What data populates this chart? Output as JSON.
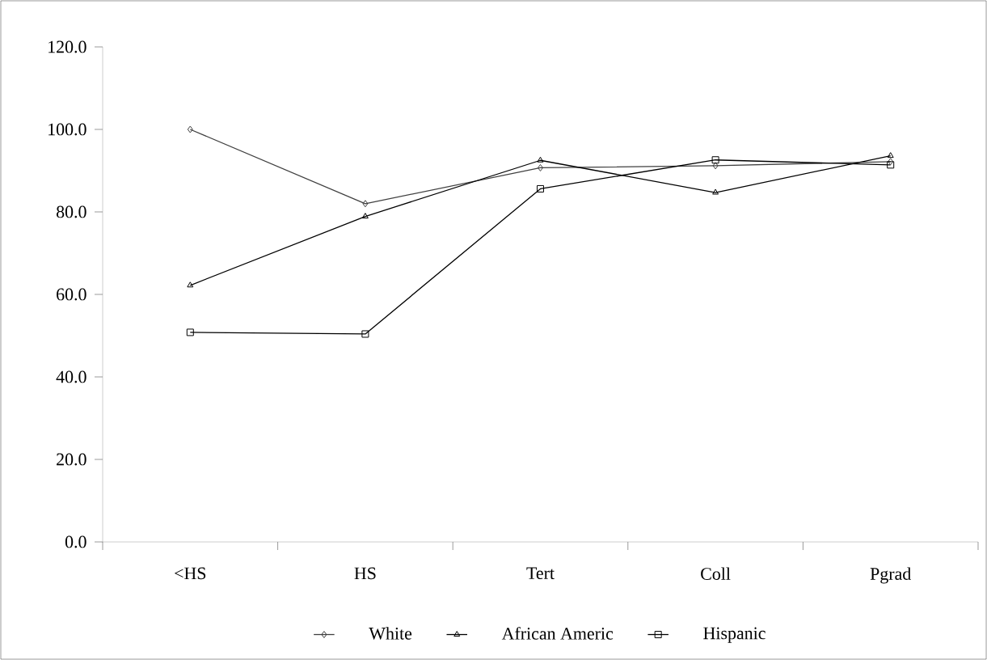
{
  "chart_data": {
    "type": "line",
    "categories": [
      "<HS",
      "HS",
      "Tert",
      "Coll",
      "Pgrad"
    ],
    "series": [
      {
        "name": "White",
        "color": "#404040",
        "marker": "diamond",
        "values": [
          100.0,
          82.0,
          90.7,
          91.2,
          92.2
        ]
      },
      {
        "name": "African Americ",
        "color": "#000000",
        "marker": "triangle",
        "values": [
          62.2,
          78.9,
          92.5,
          84.7,
          93.6
        ]
      },
      {
        "name": "Hispanic",
        "color": "#000000",
        "marker": "square",
        "values": [
          50.8,
          50.4,
          85.6,
          92.6,
          91.4
        ]
      }
    ],
    "ylim": [
      0,
      120
    ],
    "yticks": [
      {
        "value": 0,
        "label": "0.0"
      },
      {
        "value": 20,
        "label": "20.0"
      },
      {
        "value": 40,
        "label": "40.0"
      },
      {
        "value": 60,
        "label": "60.0"
      },
      {
        "value": 80,
        "label": "80.0"
      },
      {
        "value": 100,
        "label": "100.0"
      },
      {
        "value": 120,
        "label": "120.0"
      }
    ],
    "grid": false,
    "legend": "bottom",
    "line_style": "solid"
  }
}
